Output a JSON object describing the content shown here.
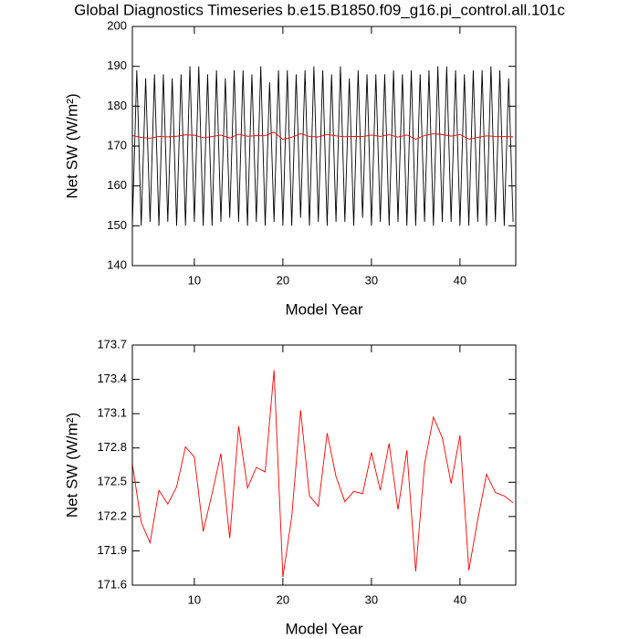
{
  "chart_data": [
    {
      "type": "line",
      "title": "Global Diagnostics Timeseries b.e15.B1850.f09_g16.pi_control.all.101c",
      "xlabel": "Model Year",
      "ylabel": "Net SW (W/m²)",
      "xlim": [
        3,
        46.3
      ],
      "xticks": [
        10,
        20,
        30,
        40
      ],
      "ylim": [
        140,
        200
      ],
      "yticks": [
        140,
        150,
        160,
        170,
        180,
        190,
        200
      ],
      "series": [
        {
          "color": "#000000",
          "x": [
            3,
            3.5,
            4,
            4.5,
            5,
            5.5,
            6,
            6.5,
            7,
            7.5,
            8,
            8.5,
            9,
            9.5,
            10,
            10.5,
            11,
            11.5,
            12,
            12.5,
            13,
            13.5,
            14,
            14.5,
            15,
            15.5,
            16,
            16.5,
            17,
            17.5,
            18,
            18.5,
            19,
            19.5,
            20,
            20.5,
            21,
            21.5,
            22,
            22.5,
            23,
            23.5,
            24,
            24.5,
            25,
            25.5,
            26,
            26.5,
            27,
            27.5,
            28,
            28.5,
            29,
            29.5,
            30,
            30.5,
            31,
            31.5,
            32,
            32.5,
            33,
            33.5,
            34,
            34.5,
            35,
            35.5,
            36,
            36.5,
            37,
            37.5,
            38,
            38.5,
            39,
            39.5,
            40,
            40.5,
            41,
            41.5,
            42,
            42.5,
            43,
            43.5,
            44,
            44.5,
            45,
            45.5,
            46
          ],
          "values": [
            150,
            189,
            150,
            187,
            151,
            188,
            150,
            188,
            151,
            187,
            150,
            188,
            150,
            190,
            151,
            190,
            150,
            188,
            150,
            189,
            151,
            187,
            152,
            189,
            151,
            189,
            150,
            188,
            151,
            190,
            150,
            186,
            151,
            189,
            150,
            189,
            150,
            188,
            152,
            189,
            150,
            190,
            151,
            189,
            150,
            188,
            151,
            190,
            151,
            187,
            150,
            189,
            152,
            188,
            150,
            188,
            151,
            188,
            150,
            189,
            151,
            188,
            150,
            189,
            150,
            188,
            151,
            189,
            150,
            190,
            151,
            190,
            151,
            189,
            150,
            188,
            150,
            189,
            151,
            189,
            150,
            190,
            151,
            189,
            150,
            187,
            151
          ]
        },
        {
          "color": "#ff0000",
          "x": [
            3,
            4,
            5,
            6,
            7,
            8,
            9,
            10,
            11,
            12,
            13,
            14,
            15,
            16,
            17,
            18,
            19,
            20,
            21,
            22,
            23,
            24,
            25,
            26,
            27,
            28,
            29,
            30,
            31,
            32,
            33,
            34,
            35,
            36,
            37,
            38,
            39,
            40,
            41,
            42,
            43,
            44,
            45,
            46
          ],
          "values": [
            172.66,
            172.15,
            171.97,
            172.43,
            172.31,
            172.46,
            172.81,
            172.72,
            172.07,
            172.4,
            172.75,
            172.01,
            172.99,
            172.45,
            172.63,
            172.59,
            173.48,
            171.67,
            172.2,
            173.13,
            172.38,
            172.29,
            172.93,
            172.55,
            172.33,
            172.42,
            172.4,
            172.76,
            172.43,
            172.84,
            172.26,
            172.78,
            171.72,
            172.66,
            173.07,
            172.89,
            172.49,
            172.91,
            171.73,
            172.17,
            172.57,
            172.41,
            172.38,
            172.32
          ]
        }
      ]
    },
    {
      "type": "line",
      "xlabel": "Model Year",
      "ylabel": "Net SW (W/m²)",
      "xlim": [
        3,
        46.3
      ],
      "xticks": [
        10,
        20,
        30,
        40
      ],
      "ylim": [
        171.6,
        173.7
      ],
      "yticks": [
        171.6,
        171.9,
        172.2,
        172.5,
        172.8,
        173.1,
        173.4,
        173.7
      ],
      "series": [
        {
          "color": "#ff0000",
          "x": [
            3,
            4,
            5,
            6,
            7,
            8,
            9,
            10,
            11,
            12,
            13,
            14,
            15,
            16,
            17,
            18,
            19,
            20,
            21,
            22,
            23,
            24,
            25,
            26,
            27,
            28,
            29,
            30,
            31,
            32,
            33,
            34,
            35,
            36,
            37,
            38,
            39,
            40,
            41,
            42,
            43,
            44,
            45,
            46
          ],
          "values": [
            172.66,
            172.15,
            171.97,
            172.43,
            172.31,
            172.46,
            172.81,
            172.72,
            172.07,
            172.4,
            172.75,
            172.01,
            172.99,
            172.45,
            172.63,
            172.59,
            173.48,
            171.67,
            172.2,
            173.13,
            172.38,
            172.29,
            172.93,
            172.55,
            172.33,
            172.42,
            172.4,
            172.76,
            172.43,
            172.84,
            172.26,
            172.78,
            171.72,
            172.66,
            173.07,
            172.89,
            172.49,
            172.91,
            171.73,
            172.17,
            172.57,
            172.41,
            172.38,
            172.32
          ]
        }
      ]
    }
  ]
}
